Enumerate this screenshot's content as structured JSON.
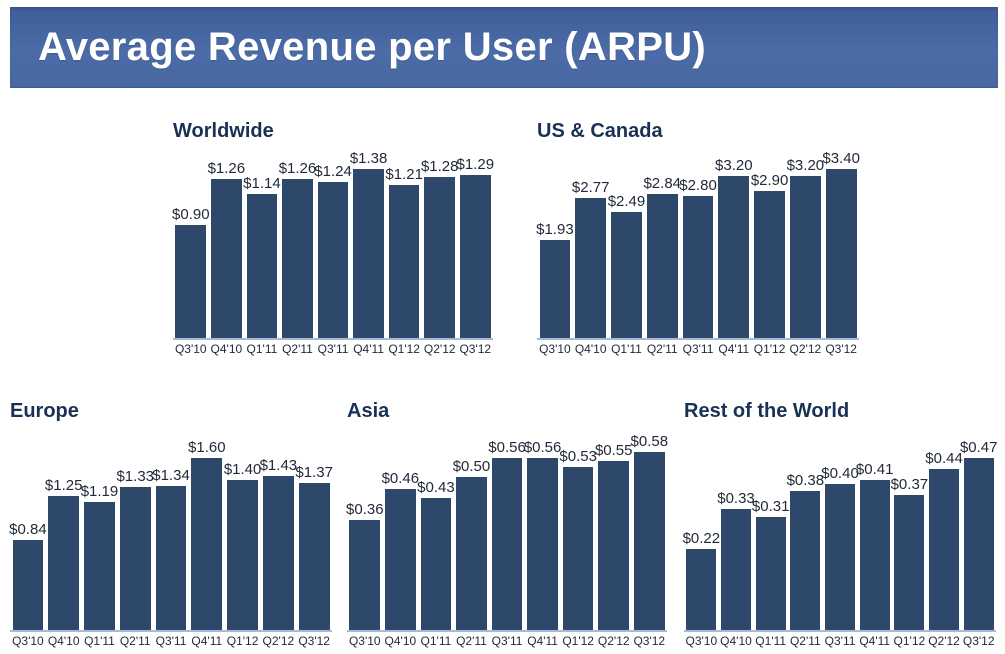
{
  "header": {
    "title": "Average Revenue per User (ARPU)"
  },
  "colors": {
    "page_background": "#ffffff",
    "banner_gradient_top": "#3e5d99",
    "banner_gradient_mid": "#4b6ca7",
    "banner_gradient_bottom": "#4a67a0",
    "banner_title_text": "#ffffff",
    "bar_fill": "#2e486c",
    "chart_title_text": "#1a3156",
    "data_label_text": "#222a3a",
    "axis_line": "#a9bad8"
  },
  "chart_data": [
    {
      "type": "bar",
      "id": "worldwide",
      "title": "Worldwide",
      "categories": [
        "Q3'10",
        "Q4'10",
        "Q1'11",
        "Q2'11",
        "Q3'11",
        "Q4'11",
        "Q1'12",
        "Q2'12",
        "Q3'12"
      ],
      "values": [
        0.9,
        1.26,
        1.14,
        1.26,
        1.24,
        1.38,
        1.21,
        1.28,
        1.29
      ],
      "data_labels": [
        "$0.90",
        "$1.26",
        "$1.14",
        "$1.26",
        "$1.24",
        "$1.38",
        "$1.21",
        "$1.28",
        "$1.29"
      ],
      "xlabel": "",
      "ylabel": "",
      "ylim": [
        0,
        1.38
      ],
      "y_axis_visible": false,
      "grid": false,
      "legend": "none"
    },
    {
      "type": "bar",
      "id": "us-canada",
      "title": "US & Canada",
      "categories": [
        "Q3'10",
        "Q4'10",
        "Q1'11",
        "Q2'11",
        "Q3'11",
        "Q4'11",
        "Q1'12",
        "Q2'12",
        "Q3'12"
      ],
      "values": [
        1.93,
        2.77,
        2.49,
        2.84,
        2.8,
        3.2,
        2.9,
        3.2,
        3.4
      ],
      "data_labels": [
        "$1.93",
        "$2.77",
        "$2.49",
        "$2.84",
        "$2.80",
        "$3.20",
        "$2.90",
        "$3.20",
        "$3.40"
      ],
      "xlabel": "",
      "ylabel": "",
      "ylim": [
        0,
        3.4
      ],
      "y_axis_visible": false,
      "grid": false,
      "legend": "none"
    },
    {
      "type": "bar",
      "id": "europe",
      "title": "Europe",
      "categories": [
        "Q3'10",
        "Q4'10",
        "Q1'11",
        "Q2'11",
        "Q3'11",
        "Q4'11",
        "Q1'12",
        "Q2'12",
        "Q3'12"
      ],
      "values": [
        0.84,
        1.25,
        1.19,
        1.33,
        1.34,
        1.6,
        1.4,
        1.43,
        1.37
      ],
      "data_labels": [
        "$0.84",
        "$1.25",
        "$1.19",
        "$1.33",
        "$1.34",
        "$1.60",
        "$1.40",
        "$1.43",
        "$1.37"
      ],
      "xlabel": "",
      "ylabel": "",
      "ylim": [
        0,
        1.6
      ],
      "y_axis_visible": false,
      "grid": false,
      "legend": "none"
    },
    {
      "type": "bar",
      "id": "asia",
      "title": "Asia",
      "categories": [
        "Q3'10",
        "Q4'10",
        "Q1'11",
        "Q2'11",
        "Q3'11",
        "Q4'11",
        "Q1'12",
        "Q2'12",
        "Q3'12"
      ],
      "values": [
        0.36,
        0.46,
        0.43,
        0.5,
        0.56,
        0.56,
        0.53,
        0.55,
        0.58
      ],
      "data_labels": [
        "$0.36",
        "$0.46",
        "$0.43",
        "$0.50",
        "$0.56",
        "$0.56",
        "$0.53",
        "$0.55",
        "$0.58"
      ],
      "xlabel": "",
      "ylabel": "",
      "ylim": [
        0,
        0.58
      ],
      "y_axis_visible": false,
      "grid": false,
      "legend": "none"
    },
    {
      "type": "bar",
      "id": "rest-of-world",
      "title": "Rest of the World",
      "categories": [
        "Q3'10",
        "Q4'10",
        "Q1'11",
        "Q2'11",
        "Q3'11",
        "Q4'11",
        "Q1'12",
        "Q2'12",
        "Q3'12"
      ],
      "values": [
        0.22,
        0.33,
        0.31,
        0.38,
        0.4,
        0.41,
        0.37,
        0.44,
        0.47
      ],
      "data_labels": [
        "$0.22",
        "$0.33",
        "$0.31",
        "$0.38",
        "$0.40",
        "$0.41",
        "$0.37",
        "$0.44",
        "$0.47"
      ],
      "xlabel": "",
      "ylabel": "",
      "ylim": [
        0,
        0.47
      ],
      "y_axis_visible": false,
      "grid": false,
      "legend": "none"
    }
  ]
}
